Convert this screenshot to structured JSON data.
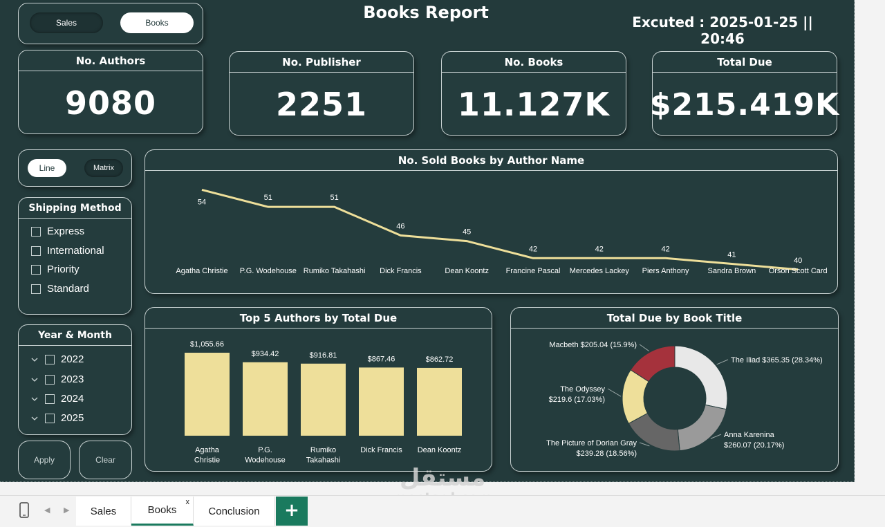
{
  "header": {
    "title": "Books Report",
    "executed": "Excuted : 2025-01-25 || 20:46"
  },
  "page_toggle": {
    "sales_label": "Sales",
    "books_label": "Books",
    "active": "Books"
  },
  "view_toggle": {
    "line_label": "Line",
    "matrix_label": "Matrix",
    "active": "Line"
  },
  "kpis": [
    {
      "title": "No. Authors",
      "value": "9080"
    },
    {
      "title": "No. Publisher",
      "value": "2251"
    },
    {
      "title": "No. Books",
      "value": "11.127K"
    },
    {
      "title": "Total Due",
      "value": "$215.419K"
    }
  ],
  "shipping": {
    "title": "Shipping Method",
    "options": [
      "Express",
      "International",
      "Priority",
      "Standard"
    ]
  },
  "year_month": {
    "title": "Year & Month",
    "years": [
      "2022",
      "2023",
      "2024",
      "2025"
    ]
  },
  "buttons": {
    "apply": "Apply",
    "clear": "Clear"
  },
  "tabs": {
    "sales": "Sales",
    "books": "Books",
    "conclusion": "Conclusion",
    "close": "x",
    "add": "+"
  },
  "watermark": {
    "text_ar": "مستقل",
    "text_en": "mostaql.com"
  },
  "colors": {
    "background": "#233a3b",
    "line": "#eedf9a",
    "bar": "#eedf9a",
    "tab_accent": "#1a7a5e"
  },
  "chart_data": [
    {
      "type": "line",
      "title": "No. Sold Books by Author Name",
      "categories": [
        "Agatha Christie",
        "P.G. Wodehouse",
        "Rumiko Takahashi",
        "Dick Francis",
        "Dean Koontz",
        "Francine Pascal",
        "Mercedes Lackey",
        "Piers Anthony",
        "Sandra Brown",
        "Orson Scott Card"
      ],
      "values": [
        54,
        51,
        51,
        46,
        45,
        42,
        42,
        42,
        41,
        40
      ],
      "data_labels": true,
      "grid": false
    },
    {
      "type": "bar",
      "title": "Top 5 Authors by Total Due",
      "categories": [
        "Agatha Christie",
        "P.G. Wodehouse",
        "Rumiko Takahashi",
        "Dick Francis",
        "Dean Koontz"
      ],
      "values": [
        1055.66,
        934.42,
        916.81,
        867.46,
        862.72
      ],
      "labels": [
        "$1,055.66",
        "$934.42",
        "$916.81",
        "$867.46",
        "$862.72"
      ],
      "grid": false
    },
    {
      "type": "pie",
      "title": "Total Due by Book Title",
      "donut": true,
      "slices": [
        {
          "name": "The Iliad",
          "value": 365.35,
          "label": "The Iliad $365.35 (28.34%)",
          "color": "#e8e8e8"
        },
        {
          "name": "Anna Karenina",
          "value": 260.07,
          "label": "Anna Karenina $260.07 (20.17%)",
          "color": "#9a9a9a"
        },
        {
          "name": "The Picture of Dorian Gray",
          "value": 239.28,
          "label": "The Picture of Dorian Gray $239.28 (18.56%)",
          "color": "#666666"
        },
        {
          "name": "The Odyssey",
          "value": 219.6,
          "label": "The Odyssey $219.6 (17.03%)",
          "color": "#eedf9a"
        },
        {
          "name": "Macbeth",
          "value": 205.04,
          "label": "Macbeth $205.04 (15.9%)",
          "color": "#a5323c"
        }
      ]
    }
  ]
}
